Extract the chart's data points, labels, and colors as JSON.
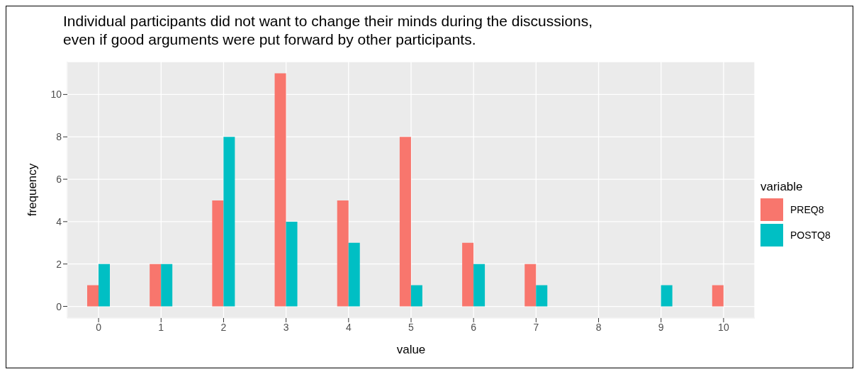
{
  "chart_data": {
    "type": "bar",
    "title": "Individual participants did not want to change their minds during the discussions,\neven if good arguments were put forward by other participants.",
    "xlabel": "value",
    "ylabel": "frequency",
    "legend_title": "variable",
    "categories": [
      "0",
      "1",
      "2",
      "3",
      "4",
      "5",
      "6",
      "7",
      "8",
      "9",
      "10"
    ],
    "series": [
      {
        "name": "PREQ8",
        "color": "#f8766d",
        "values": [
          1,
          2,
          5,
          11,
          5,
          8,
          3,
          2,
          0,
          0,
          1
        ]
      },
      {
        "name": "POSTQ8",
        "color": "#00bfc4",
        "values": [
          2,
          2,
          8,
          4,
          3,
          1,
          2,
          1,
          0,
          1,
          0
        ]
      }
    ],
    "ylim": [
      -0.55,
      11.55
    ],
    "yticks": [
      0,
      2,
      4,
      6,
      8,
      10
    ],
    "grid": true,
    "legend": "right"
  }
}
